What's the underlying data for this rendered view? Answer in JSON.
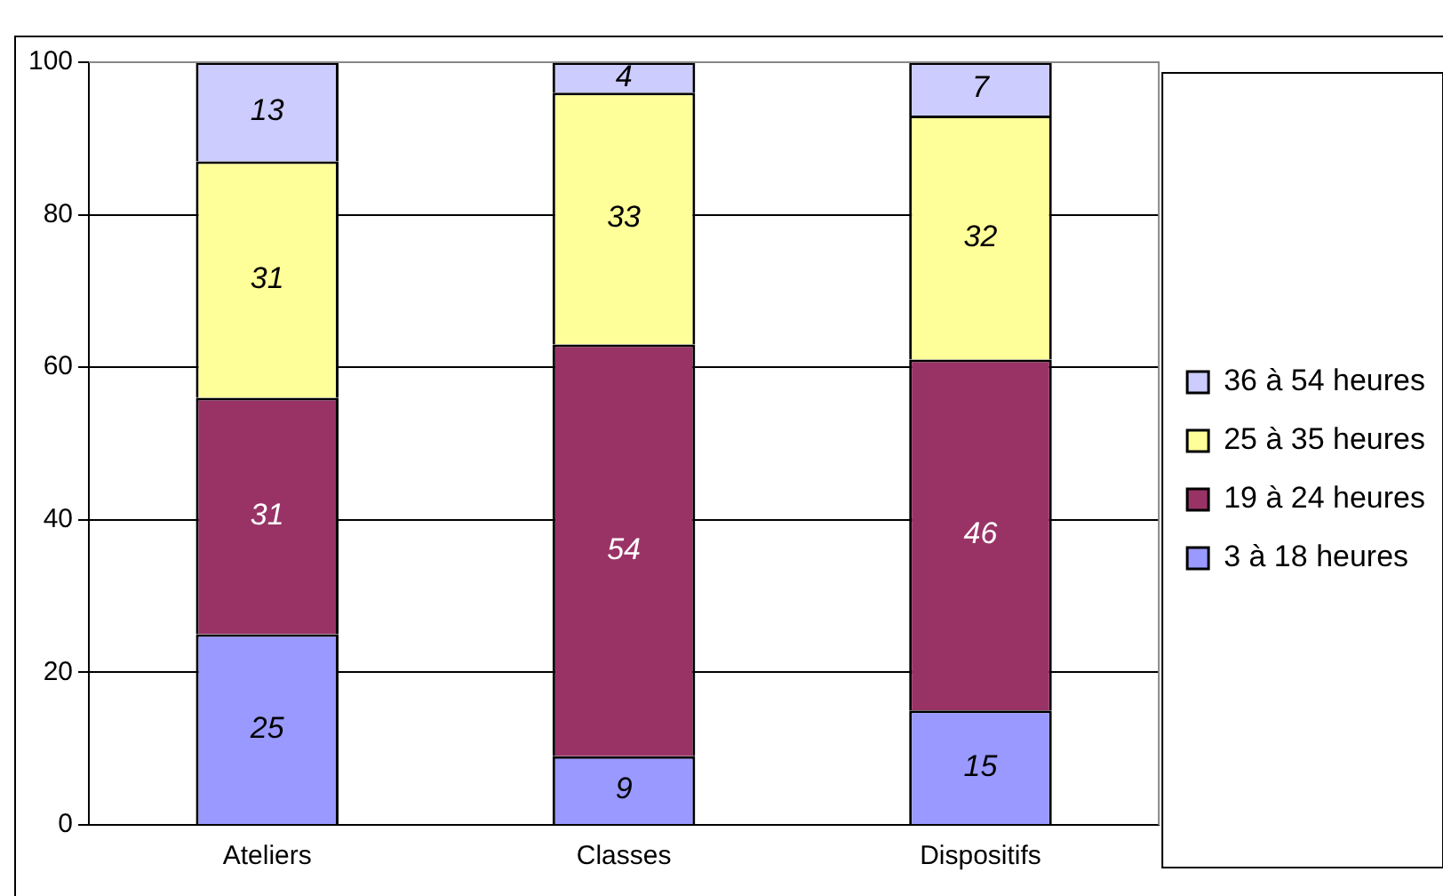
{
  "chart_data": {
    "type": "bar",
    "stacked": true,
    "categories": [
      "Ateliers",
      "Classes",
      "Dispositifs"
    ],
    "series": [
      {
        "name": "3 à 18 heures",
        "color": "#9999ff",
        "values": [
          25,
          9,
          15
        ]
      },
      {
        "name": "19 à 24 heures",
        "color": "#993366",
        "values": [
          31,
          54,
          46
        ]
      },
      {
        "name": "25 à 35 heures",
        "color": "#ffff99",
        "values": [
          31,
          33,
          32
        ]
      },
      {
        "name": "36 à 54 heures",
        "color": "#ccccff",
        "values": [
          13,
          4,
          7
        ]
      }
    ],
    "ylim": [
      0,
      100
    ],
    "yticks": [
      0,
      20,
      40,
      60,
      80,
      100
    ],
    "grid": "y",
    "legend": "right",
    "data_labels": true
  }
}
